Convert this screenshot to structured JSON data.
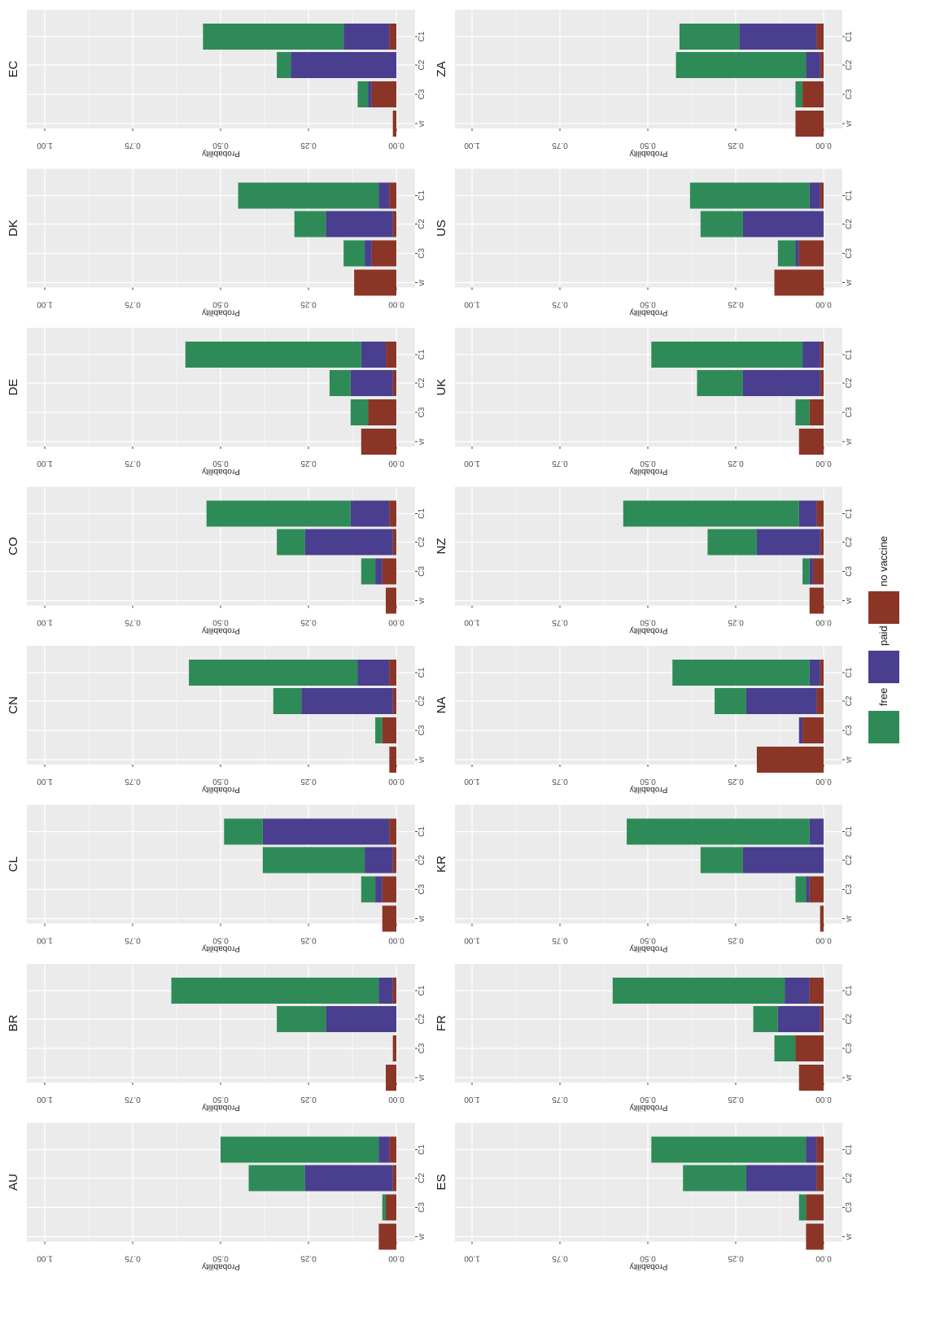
{
  "chart_data": {
    "type": "bar",
    "stacked": true,
    "orientation": "rotated",
    "panel_layout": "facet grid, 2 columns x 8 rows",
    "categories": [
      "C1",
      "C2",
      "C3",
      "vr"
    ],
    "ylabel": "Probability",
    "ylim": [
      0,
      1
    ],
    "ticks": [
      "0.00",
      "0.25",
      "0.50",
      "0.75",
      "1.00"
    ],
    "tick_values": [
      0,
      0.25,
      0.5,
      0.75,
      1
    ],
    "grid": true,
    "legend_position": "right",
    "series": [
      {
        "name": "no vaccine",
        "color": "#8b3527"
      },
      {
        "name": "paid",
        "color": "#4a3e8f"
      },
      {
        "name": "free",
        "color": "#2e8b57"
      }
    ],
    "panels": [
      {
        "label": "EC",
        "values": [
          [
            0.02,
            0.13,
            0.4
          ],
          [
            0.0,
            0.3,
            0.04
          ],
          [
            0.07,
            0.01,
            0.03
          ],
          [
            0.01,
            0,
            0
          ]
        ]
      },
      {
        "label": "DK",
        "values": [
          [
            0.02,
            0.03,
            0.4
          ],
          [
            0.01,
            0.19,
            0.09
          ],
          [
            0.07,
            0.02,
            0.06
          ],
          [
            0.12,
            0,
            0
          ]
        ]
      },
      {
        "label": "DE",
        "values": [
          [
            0.03,
            0.07,
            0.5
          ],
          [
            0.01,
            0.12,
            0.06
          ],
          [
            0.08,
            0,
            0.05
          ],
          [
            0.1,
            0,
            0
          ]
        ]
      },
      {
        "label": "CO",
        "values": [
          [
            0.02,
            0.11,
            0.41
          ],
          [
            0.01,
            0.25,
            0.08
          ],
          [
            0.04,
            0.02,
            0.04
          ],
          [
            0.03,
            0,
            0
          ]
        ]
      },
      {
        "label": "CN",
        "values": [
          [
            0.02,
            0.09,
            0.48
          ],
          [
            0.01,
            0.26,
            0.08
          ],
          [
            0.04,
            0,
            0.02
          ],
          [
            0.02,
            0,
            0
          ]
        ]
      },
      {
        "label": "CL",
        "values": [
          [
            0.02,
            0.36,
            0.11
          ],
          [
            0.01,
            0.08,
            0.29
          ],
          [
            0.04,
            0.02,
            0.04
          ],
          [
            0.04,
            0,
            0
          ]
        ]
      },
      {
        "label": "BR",
        "values": [
          [
            0.01,
            0.04,
            0.59
          ],
          [
            0.0,
            0.2,
            0.14
          ],
          [
            0.01,
            0,
            0
          ],
          [
            0.03,
            0,
            0
          ]
        ]
      },
      {
        "label": "AU",
        "values": [
          [
            0.02,
            0.03,
            0.45
          ],
          [
            0.01,
            0.25,
            0.16
          ],
          [
            0.03,
            0,
            0.01
          ],
          [
            0.05,
            0,
            0
          ]
        ]
      },
      {
        "label": "ZA",
        "values": [
          [
            0.02,
            0.22,
            0.17
          ],
          [
            0.01,
            0.04,
            0.37
          ],
          [
            0.06,
            0,
            0.02
          ],
          [
            0.08,
            0,
            0
          ]
        ]
      },
      {
        "label": "US",
        "values": [
          [
            0.01,
            0.03,
            0.34
          ],
          [
            0.0,
            0.23,
            0.12
          ],
          [
            0.07,
            0.01,
            0.05
          ],
          [
            0.14,
            0,
            0
          ]
        ]
      },
      {
        "label": "UK",
        "values": [
          [
            0.01,
            0.05,
            0.43
          ],
          [
            0.01,
            0.22,
            0.13
          ],
          [
            0.04,
            0,
            0.04
          ],
          [
            0.07,
            0,
            0
          ]
        ]
      },
      {
        "label": "NZ",
        "values": [
          [
            0.02,
            0.05,
            0.5
          ],
          [
            0.01,
            0.18,
            0.14
          ],
          [
            0.03,
            0.01,
            0.02
          ],
          [
            0.04,
            0,
            0
          ]
        ]
      },
      {
        "label": "NA",
        "values": [
          [
            0.01,
            0.03,
            0.39
          ],
          [
            0.02,
            0.2,
            0.09
          ],
          [
            0.06,
            0.01,
            0
          ],
          [
            0.19,
            0,
            0
          ]
        ]
      },
      {
        "label": "KR",
        "values": [
          [
            0.0,
            0.04,
            0.52
          ],
          [
            0.0,
            0.23,
            0.12
          ],
          [
            0.04,
            0.01,
            0.03
          ],
          [
            0.01,
            0,
            0
          ]
        ]
      },
      {
        "label": "FR",
        "values": [
          [
            0.04,
            0.07,
            0.49
          ],
          [
            0.01,
            0.12,
            0.07
          ],
          [
            0.08,
            0.0,
            0.06
          ],
          [
            0.07,
            0,
            0
          ]
        ]
      },
      {
        "label": "ES",
        "values": [
          [
            0.02,
            0.03,
            0.44
          ],
          [
            0.02,
            0.2,
            0.18
          ],
          [
            0.05,
            0,
            0.02
          ],
          [
            0.05,
            0,
            0
          ]
        ]
      }
    ]
  }
}
